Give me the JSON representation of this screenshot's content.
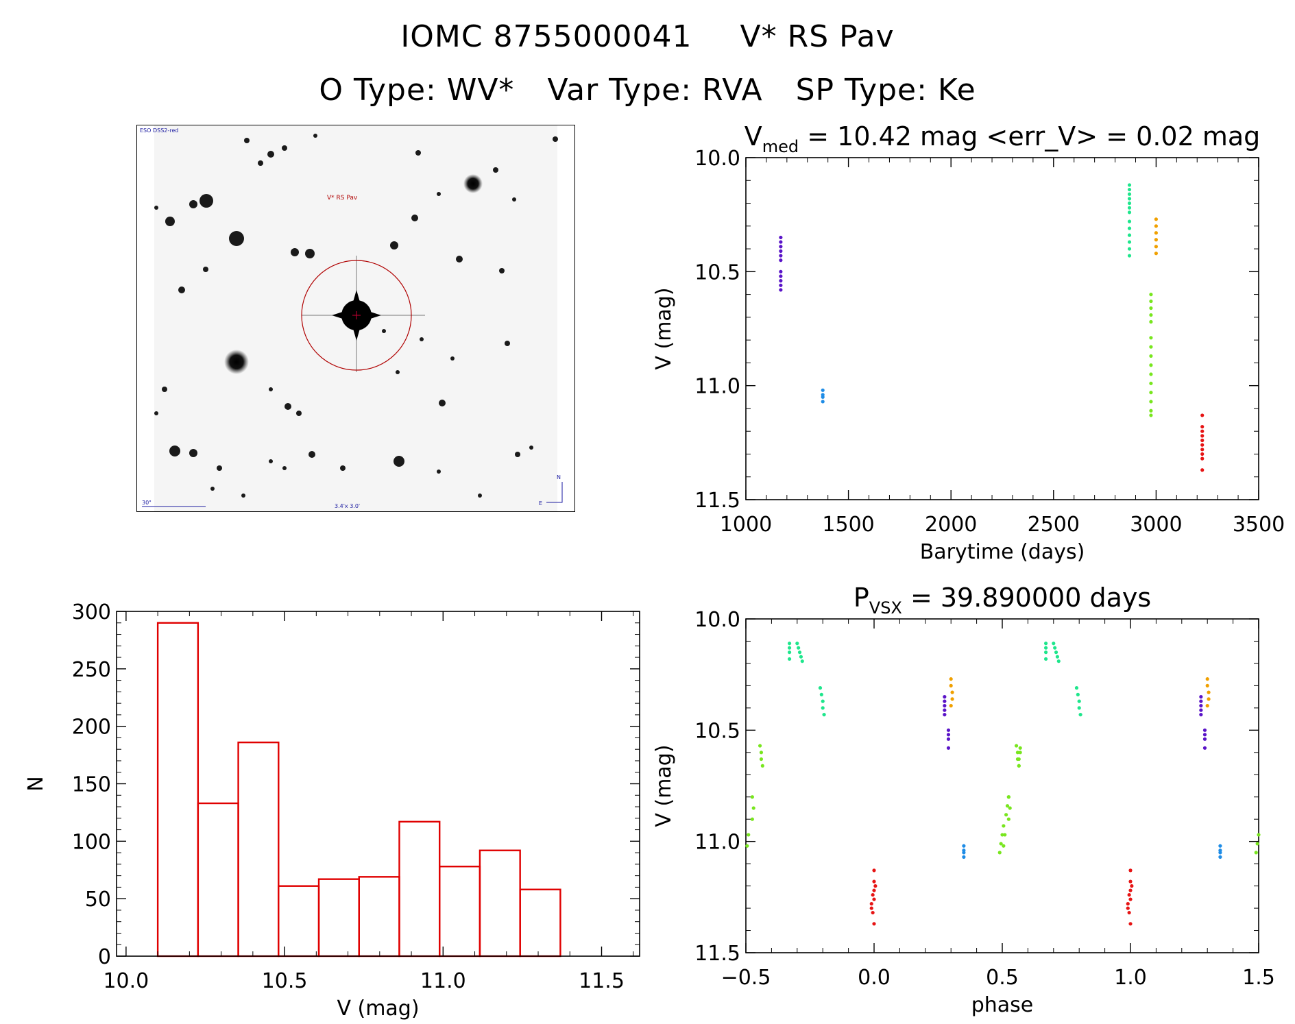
{
  "title": {
    "line1": [
      "IOMC 8755000041",
      "V* RS Pav"
    ],
    "line2": [
      "O Type: WV*",
      "Var Type: RVA",
      "SP Type: Ke"
    ]
  },
  "finder_chart": {
    "survey_label": "ESO DSS2-red",
    "target_label": "V* RS Pav",
    "scale_label": "30\"",
    "size_label": "3.4'x 3.0'",
    "compass": {
      "north": "N",
      "east": "E"
    }
  },
  "colors": {
    "histogram": "#e00000",
    "ring": "#b00000",
    "epochs": [
      "#5a14c8",
      "#1e8ce6",
      "#1ee68c",
      "#78e61e",
      "#f0a000",
      "#e61414"
    ]
  },
  "chart_data": [
    {
      "id": "light_curve",
      "type": "scatter",
      "title_parts": {
        "main": "V",
        "sub": "med",
        "rest": " = 10.42 mag <err_V> = 0.02 mag"
      },
      "xlabel": "Barytime (days)",
      "ylabel": "V (mag)",
      "xlim": [
        1000,
        3500
      ],
      "ylim": [
        10.0,
        11.5
      ],
      "y_inverted": true,
      "xticks": [
        "1000",
        "1500",
        "2000",
        "2500",
        "3000",
        "3500"
      ],
      "yticks": [
        "10.0",
        "10.5",
        "11.0",
        "11.5"
      ],
      "series": [
        {
          "color": "#5a14c8",
          "points": [
            [
              1170,
              10.35
            ],
            [
              1170,
              10.37
            ],
            [
              1170,
              10.39
            ],
            [
              1170,
              10.41
            ],
            [
              1170,
              10.43
            ],
            [
              1170,
              10.45
            ],
            [
              1170,
              10.5
            ],
            [
              1170,
              10.52
            ],
            [
              1170,
              10.54
            ],
            [
              1170,
              10.56
            ],
            [
              1170,
              10.58
            ]
          ]
        },
        {
          "color": "#1e8ce6",
          "points": [
            [
              1375,
              11.02
            ],
            [
              1375,
              11.04
            ],
            [
              1375,
              11.05
            ],
            [
              1375,
              11.07
            ]
          ]
        },
        {
          "color": "#1ee68c",
          "points": [
            [
              2870,
              10.12
            ],
            [
              2870,
              10.14
            ],
            [
              2870,
              10.16
            ],
            [
              2870,
              10.18
            ],
            [
              2870,
              10.2
            ],
            [
              2870,
              10.22
            ],
            [
              2870,
              10.24
            ],
            [
              2870,
              10.28
            ],
            [
              2870,
              10.31
            ],
            [
              2870,
              10.34
            ],
            [
              2870,
              10.37
            ],
            [
              2870,
              10.4
            ],
            [
              2870,
              10.43
            ]
          ]
        },
        {
          "color": "#78e61e",
          "points": [
            [
              2975,
              10.6
            ],
            [
              2975,
              10.63
            ],
            [
              2975,
              10.66
            ],
            [
              2975,
              10.69
            ],
            [
              2975,
              10.72
            ],
            [
              2975,
              10.79
            ],
            [
              2975,
              10.83
            ],
            [
              2975,
              10.87
            ],
            [
              2975,
              10.91
            ],
            [
              2975,
              10.95
            ],
            [
              2975,
              10.99
            ],
            [
              2975,
              11.03
            ],
            [
              2975,
              11.07
            ],
            [
              2975,
              11.11
            ],
            [
              2975,
              11.13
            ]
          ]
        },
        {
          "color": "#f0a000",
          "points": [
            [
              3000,
              10.27
            ],
            [
              3000,
              10.3
            ],
            [
              3000,
              10.33
            ],
            [
              3000,
              10.36
            ],
            [
              3000,
              10.39
            ],
            [
              3000,
              10.42
            ]
          ]
        },
        {
          "color": "#e61414",
          "points": [
            [
              3225,
              11.13
            ],
            [
              3225,
              11.18
            ],
            [
              3225,
              11.2
            ],
            [
              3225,
              11.22
            ],
            [
              3225,
              11.24
            ],
            [
              3225,
              11.26
            ],
            [
              3225,
              11.28
            ],
            [
              3225,
              11.3
            ],
            [
              3225,
              11.32
            ],
            [
              3225,
              11.37
            ]
          ]
        }
      ]
    },
    {
      "id": "histogram",
      "type": "bar",
      "xlabel": "V (mag)",
      "ylabel": "N",
      "xlim": [
        9.97,
        11.62
      ],
      "ylim": [
        0,
        300
      ],
      "xticks": [
        "10.0",
        "10.5",
        "11.0",
        "11.5"
      ],
      "yticks": [
        "0",
        "50",
        "100",
        "150",
        "200",
        "250",
        "300"
      ],
      "bin_edges": [
        10.1,
        10.227,
        10.354,
        10.481,
        10.608,
        10.735,
        10.862,
        10.989,
        11.116,
        11.243,
        11.37
      ],
      "values": [
        290,
        133,
        186,
        61,
        67,
        69,
        117,
        78,
        92,
        58
      ]
    },
    {
      "id": "phase_curve",
      "type": "scatter",
      "title_parts": {
        "main": "P",
        "sub": "VSX",
        "rest": " = 39.890000 days"
      },
      "xlabel": "phase",
      "ylabel": "V (mag)",
      "xlim": [
        -0.5,
        1.5
      ],
      "ylim": [
        10.0,
        11.5
      ],
      "y_inverted": true,
      "xticks": [
        "−0.5",
        "0.0",
        "0.5",
        "1.0",
        "1.5"
      ],
      "yticks": [
        "10.0",
        "10.5",
        "11.0",
        "11.5"
      ],
      "series": [
        {
          "color": "#5a14c8",
          "points": [
            [
              0.275,
              10.35
            ],
            [
              0.275,
              10.37
            ],
            [
              0.275,
              10.39
            ],
            [
              0.275,
              10.41
            ],
            [
              0.275,
              10.43
            ],
            [
              0.29,
              10.5
            ],
            [
              0.29,
              10.52
            ],
            [
              0.29,
              10.54
            ],
            [
              0.29,
              10.58
            ]
          ]
        },
        {
          "color": "#1e8ce6",
          "points": [
            [
              0.35,
              11.02
            ],
            [
              0.35,
              11.04
            ],
            [
              0.35,
              11.05
            ],
            [
              0.35,
              11.07
            ]
          ]
        },
        {
          "color": "#1ee68c",
          "points": [
            [
              -0.33,
              10.11
            ],
            [
              -0.33,
              10.13
            ],
            [
              -0.33,
              10.15
            ],
            [
              -0.33,
              10.18
            ],
            [
              -0.3,
              10.11
            ],
            [
              -0.295,
              10.13
            ],
            [
              -0.29,
              10.15
            ],
            [
              -0.285,
              10.17
            ],
            [
              -0.28,
              10.19
            ],
            [
              -0.21,
              10.31
            ],
            [
              -0.205,
              10.34
            ],
            [
              -0.2,
              10.37
            ],
            [
              -0.2,
              10.4
            ],
            [
              -0.195,
              10.43
            ]
          ]
        },
        {
          "color": "#78e61e",
          "points": [
            [
              -0.445,
              10.57
            ],
            [
              -0.44,
              10.6
            ],
            [
              -0.44,
              10.63
            ],
            [
              -0.435,
              10.66
            ],
            [
              -0.475,
              10.8
            ],
            [
              -0.47,
              10.85
            ],
            [
              -0.475,
              10.9
            ],
            [
              -0.49,
              10.97
            ],
            [
              -0.495,
              11.02
            ],
            [
              0.49,
              11.05
            ],
            [
              0.495,
              11.01
            ],
            [
              0.5,
              10.97
            ],
            [
              0.505,
              10.93
            ],
            [
              0.515,
              10.88
            ],
            [
              0.52,
              10.84
            ],
            [
              0.525,
              10.8
            ],
            [
              0.57,
              10.58
            ],
            [
              0.57,
              10.6
            ],
            [
              0.565,
              10.63
            ],
            [
              0.565,
              10.66
            ]
          ]
        },
        {
          "color": "#f0a000",
          "points": [
            [
              0.3,
              10.27
            ],
            [
              0.3,
              10.3
            ],
            [
              0.305,
              10.33
            ],
            [
              0.305,
              10.36
            ],
            [
              0.3,
              10.39
            ]
          ]
        },
        {
          "color": "#e61414",
          "points": [
            [
              0.0,
              11.13
            ],
            [
              0.0,
              11.18
            ],
            [
              0.005,
              11.2
            ],
            [
              0.0,
              11.22
            ],
            [
              -0.005,
              11.24
            ],
            [
              0.0,
              11.26
            ],
            [
              -0.01,
              11.28
            ],
            [
              -0.01,
              11.3
            ],
            [
              -0.005,
              11.32
            ],
            [
              0.0,
              11.37
            ]
          ]
        }
      ],
      "repeat_shift": 1.0
    }
  ]
}
